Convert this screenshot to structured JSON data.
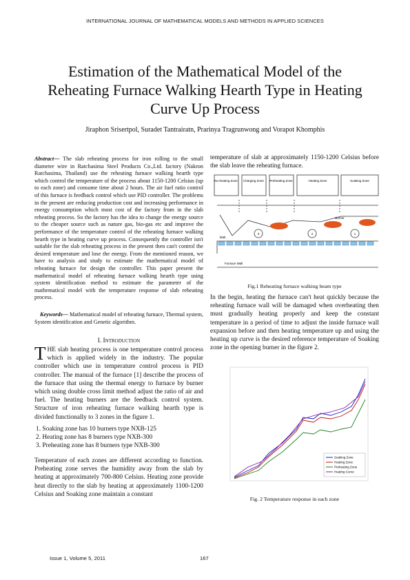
{
  "header": {
    "journal": "INTERNATIONAL JOURNAL OF MATHEMATICAL MODELS AND METHODS IN APPLIED SCIENCES"
  },
  "title": "Estimation of the Mathematical Model of the Reheating Furnace Walking Hearth Type in Heating Curve Up Process",
  "authors": "Jiraphon Srisertpol, Suradet Tantrairatn, Prarinya Tragrunwong and Vorapot Khomphis",
  "abstract": {
    "label": "Abstract—",
    "text": "The slab reheating process for iron rolling to the small diameter wire in Ratchasima Steel Products Co.,Ltd. factory (Nakron Ratchasima, Thailand) use the reheating furnace walking hearth type which control the temperature of the process about 1150-1200 Celsius (up to each zone) and consume time about 2 hours. The air fuel ratio control of this furnace is feedback control which use PID controller. The problems in the present are reducing production cost and increasing performance in energy consumption which most cost of the factory from in the slab reheating process. So the factory has the idea to change the energy source to the cheaper source such as nature gas, bio-gas etc and improve the performance of the temperature control of the reheating furnace walking hearth type in heating curve up process. Consequently the controller isn't suitable for the slab reheating process in the present then can't control the desired temperature and lose the energy. From the mentioned reason, we have to analysis and study to estimate the mathematical model of reheating furnace for design the controller. This paper present the mathematical model of reheating furnace walking hearth type using system identification method to estimate the parameter of the mathematical model with the temperature response of slab reheating process."
  },
  "keywords": {
    "label": "Keywords—",
    "text": "Mathematical model of reheating furnace, Thermal system, System identification and Genetic algorithm."
  },
  "section": {
    "heading": "I. Introduction",
    "dropcap": "T",
    "p1": "HE slab heating process is one temperature control process which is applied widely in the industry. The popular controller which use in temperature control process is PID controller. The manual of the furnace [1] describe the process of the furnace that using the thermal energy to furnace by burner which using double cross limit method adjust the ratio of air and fuel. The heating burners are the feedback control system. Structure of iron reheating furnace walking hearth type is divided functionally to 3 zones in the figure 1.",
    "list": [
      "1. Soaking zone has 10 burners type NXB-125",
      "2. Heating zone has 8 burners type NXB-300",
      "3. Preheating zone has 8 burners type NXB-300"
    ],
    "p2a": "Temperature of each zones are different according to function. Preheating zone serves the humidity away from the slab by heating at approximately 700-800 Celsius. Heating zone provide heat directly to the slab by heating at approximately 1100-1200 Celsius and Soaking zone maintain a constant",
    "p2b": "temperature of slab at approximately 1150-1200 Celsius before the slab leave the reheating furnace.",
    "p3": "In the begin, heating the furnace can't heat quickly because the reheating furnace wall will be damaged when overheating then must gradually heating properly and keep the constant temperature in a period of time to adjust the inside furnace wall expansion before and then heating temperature up and using the heating up curve is the desired reference temperature of Soaking zone in the opening burner in the figure 2."
  },
  "figure1": {
    "zones": [
      "No-heating Zone",
      "Charging Zone",
      "Preheating Zone",
      "Heating Zone",
      "Soaking Zone"
    ],
    "burner": "Burner",
    "slab": "Slab",
    "wall": "Furnace Wall",
    "numbers": [
      "3",
      "2",
      "1"
    ],
    "caption": "Fig.1 Reheating furnace walking beam type"
  },
  "figure2": {
    "legend": [
      "Soaking Zone",
      "Heating Zone",
      "Preheating Zone",
      "Heating Curve"
    ],
    "caption": "Fig. 2 Temperature response in each zone"
  },
  "footer": {
    "issue": "Issue 1, Volume 5, 2011",
    "page": "167"
  }
}
